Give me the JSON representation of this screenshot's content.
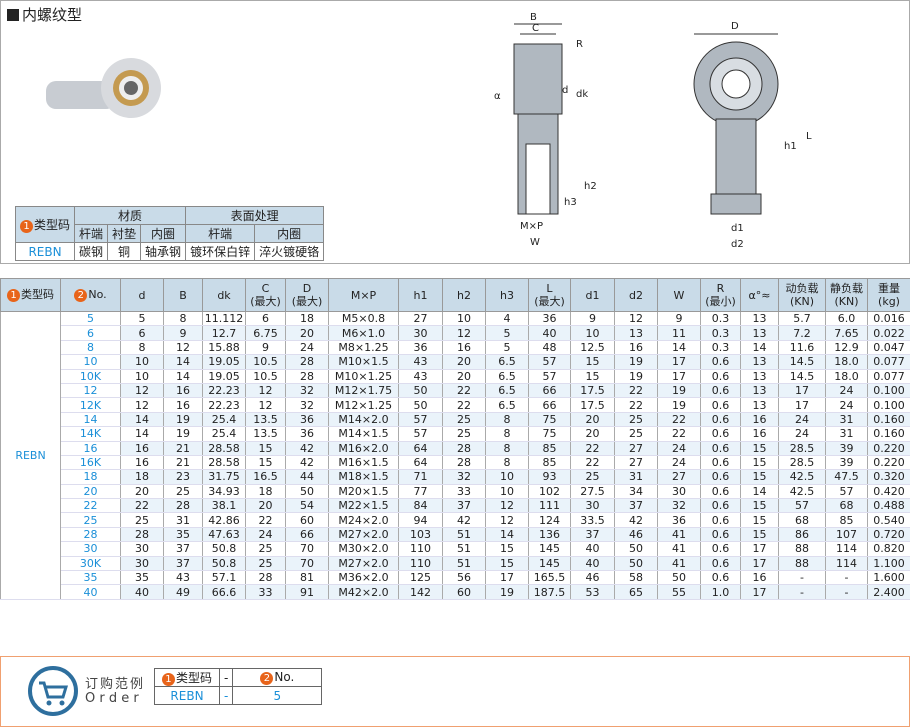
{
  "title": "内螺纹型",
  "icons": {
    "cart": "shopping-cart-icon"
  },
  "colors": {
    "accent": "#e8641a",
    "link": "#1a8fd8",
    "header": "#c9dbe8"
  },
  "material_table": {
    "type_code_label": "类型码",
    "material": "材质",
    "surface": "表面处理",
    "cols": [
      "杆端",
      "衬垫",
      "内圈",
      "杆端",
      "内圈"
    ],
    "type": "REBN",
    "values": [
      "碳钢",
      "铜",
      "轴承钢",
      "镀环保白锌",
      "淬火镀硬铬"
    ]
  },
  "drawing_labels": {
    "B": "B",
    "C": "C",
    "R": "R",
    "a": "α",
    "d": "d",
    "dk": "dk",
    "h1": "h1",
    "h2": "h2",
    "h3": "h3",
    "MxP": "M×P",
    "W": "W",
    "D": "D",
    "L": "L",
    "d1": "d1",
    "d2": "d2"
  },
  "table": {
    "headers": [
      "类型码",
      "No.",
      "d",
      "B",
      "dk",
      "C\n(最大)",
      "D\n(最大)",
      "M×P",
      "h1",
      "h2",
      "h3",
      "L\n(最大)",
      "d1",
      "d2",
      "W",
      "R\n(最小)",
      "α°≈",
      "动负载\n(KN)",
      "静负载\n(KN)",
      "重量\n(kg)"
    ],
    "type": "REBN",
    "rows": [
      [
        "5",
        "5",
        "8",
        "11.112",
        "6",
        "18",
        "M5×0.8",
        "27",
        "10",
        "4",
        "36",
        "9",
        "12",
        "9",
        "0.3",
        "13",
        "5.7",
        "6.0",
        "0.016"
      ],
      [
        "6",
        "6",
        "9",
        "12.7",
        "6.75",
        "20",
        "M6×1.0",
        "30",
        "12",
        "5",
        "40",
        "10",
        "13",
        "11",
        "0.3",
        "13",
        "7.2",
        "7.65",
        "0.022"
      ],
      [
        "8",
        "8",
        "12",
        "15.88",
        "9",
        "24",
        "M8×1.25",
        "36",
        "16",
        "5",
        "48",
        "12.5",
        "16",
        "14",
        "0.3",
        "14",
        "11.6",
        "12.9",
        "0.047"
      ],
      [
        "10",
        "10",
        "14",
        "19.05",
        "10.5",
        "28",
        "M10×1.5",
        "43",
        "20",
        "6.5",
        "57",
        "15",
        "19",
        "17",
        "0.6",
        "13",
        "14.5",
        "18.0",
        "0.077"
      ],
      [
        "10K",
        "10",
        "14",
        "19.05",
        "10.5",
        "28",
        "M10×1.25",
        "43",
        "20",
        "6.5",
        "57",
        "15",
        "19",
        "17",
        "0.6",
        "13",
        "14.5",
        "18.0",
        "0.077"
      ],
      [
        "12",
        "12",
        "16",
        "22.23",
        "12",
        "32",
        "M12×1.75",
        "50",
        "22",
        "6.5",
        "66",
        "17.5",
        "22",
        "19",
        "0.6",
        "13",
        "17",
        "24",
        "0.100"
      ],
      [
        "12K",
        "12",
        "16",
        "22.23",
        "12",
        "32",
        "M12×1.25",
        "50",
        "22",
        "6.5",
        "66",
        "17.5",
        "22",
        "19",
        "0.6",
        "13",
        "17",
        "24",
        "0.100"
      ],
      [
        "14",
        "14",
        "19",
        "25.4",
        "13.5",
        "36",
        "M14×2.0",
        "57",
        "25",
        "8",
        "75",
        "20",
        "25",
        "22",
        "0.6",
        "16",
        "24",
        "31",
        "0.160"
      ],
      [
        "14K",
        "14",
        "19",
        "25.4",
        "13.5",
        "36",
        "M14×1.5",
        "57",
        "25",
        "8",
        "75",
        "20",
        "25",
        "22",
        "0.6",
        "16",
        "24",
        "31",
        "0.160"
      ],
      [
        "16",
        "16",
        "21",
        "28.58",
        "15",
        "42",
        "M16×2.0",
        "64",
        "28",
        "8",
        "85",
        "22",
        "27",
        "24",
        "0.6",
        "15",
        "28.5",
        "39",
        "0.220"
      ],
      [
        "16K",
        "16",
        "21",
        "28.58",
        "15",
        "42",
        "M16×1.5",
        "64",
        "28",
        "8",
        "85",
        "22",
        "27",
        "24",
        "0.6",
        "15",
        "28.5",
        "39",
        "0.220"
      ],
      [
        "18",
        "18",
        "23",
        "31.75",
        "16.5",
        "44",
        "M18×1.5",
        "71",
        "32",
        "10",
        "93",
        "25",
        "31",
        "27",
        "0.6",
        "15",
        "42.5",
        "47.5",
        "0.320"
      ],
      [
        "20",
        "20",
        "25",
        "34.93",
        "18",
        "50",
        "M20×1.5",
        "77",
        "33",
        "10",
        "102",
        "27.5",
        "34",
        "30",
        "0.6",
        "14",
        "42.5",
        "57",
        "0.420"
      ],
      [
        "22",
        "22",
        "28",
        "38.1",
        "20",
        "54",
        "M22×1.5",
        "84",
        "37",
        "12",
        "111",
        "30",
        "37",
        "32",
        "0.6",
        "15",
        "57",
        "68",
        "0.488"
      ],
      [
        "25",
        "25",
        "31",
        "42.86",
        "22",
        "60",
        "M24×2.0",
        "94",
        "42",
        "12",
        "124",
        "33.5",
        "42",
        "36",
        "0.6",
        "15",
        "68",
        "85",
        "0.540"
      ],
      [
        "28",
        "28",
        "35",
        "47.63",
        "24",
        "66",
        "M27×2.0",
        "103",
        "51",
        "14",
        "136",
        "37",
        "46",
        "41",
        "0.6",
        "15",
        "86",
        "107",
        "0.720"
      ],
      [
        "30",
        "30",
        "37",
        "50.8",
        "25",
        "70",
        "M30×2.0",
        "110",
        "51",
        "15",
        "145",
        "40",
        "50",
        "41",
        "0.6",
        "17",
        "88",
        "114",
        "0.820"
      ],
      [
        "30K",
        "30",
        "37",
        "50.8",
        "25",
        "70",
        "M27×2.0",
        "110",
        "51",
        "15",
        "145",
        "40",
        "50",
        "41",
        "0.6",
        "17",
        "88",
        "114",
        "1.100"
      ],
      [
        "35",
        "35",
        "43",
        "57.1",
        "28",
        "81",
        "M36×2.0",
        "125",
        "56",
        "17",
        "165.5",
        "46",
        "58",
        "50",
        "0.6",
        "16",
        "-",
        "-",
        "1.600"
      ],
      [
        "40",
        "40",
        "49",
        "66.6",
        "33",
        "91",
        "M42×2.0",
        "142",
        "60",
        "19",
        "187.5",
        "53",
        "65",
        "55",
        "1.0",
        "17",
        "-",
        "-",
        "2.400"
      ]
    ]
  },
  "order": {
    "title_cn": "订购范例",
    "title_en": "O r d e r",
    "type_label": "类型码",
    "no_label": "No.",
    "dash": "-",
    "type": "REBN",
    "no": "5"
  }
}
